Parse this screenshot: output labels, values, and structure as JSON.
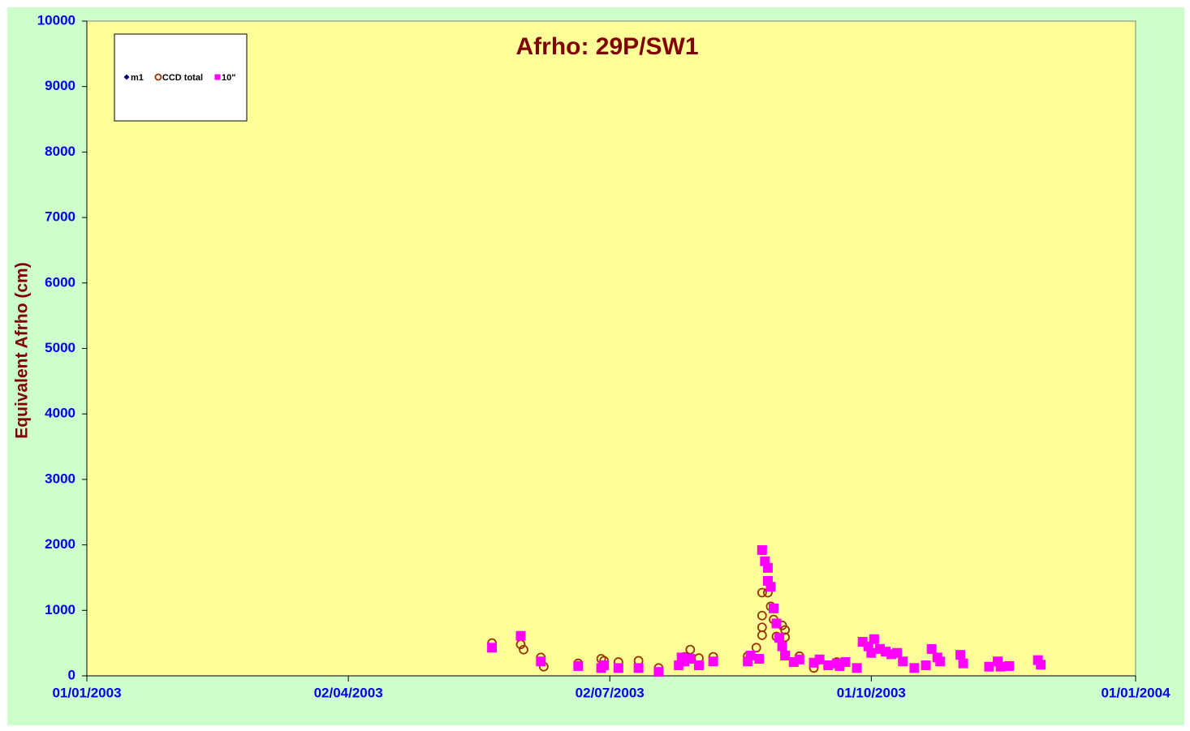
{
  "chart_data": {
    "type": "scatter",
    "title": "Afrho: 29P/SW1",
    "y_label": "Equivalent Afrho (cm)",
    "xlim": [
      "2003-01-01",
      "2004-01-01"
    ],
    "xticks": [
      {
        "value": "2003-01-01",
        "label": "01/01/2003"
      },
      {
        "value": "2003-04-02",
        "label": "02/04/2003"
      },
      {
        "value": "2003-07-02",
        "label": "02/07/2003"
      },
      {
        "value": "2003-10-01",
        "label": "01/10/2003"
      },
      {
        "value": "2004-01-01",
        "label": "01/01/2004"
      }
    ],
    "ylim": [
      0,
      10000
    ],
    "yticks": [
      0,
      1000,
      2000,
      3000,
      4000,
      5000,
      6000,
      7000,
      8000,
      9000,
      10000
    ],
    "legend": "upper left",
    "series": [
      {
        "name": "m1",
        "color": "#000080",
        "marker": "diamond",
        "x": [],
        "values": []
      },
      {
        "name": "CCD total",
        "color": "#993300",
        "marker": "open-circle",
        "x": [
          "2003-05-22",
          "2003-06-01",
          "2003-06-02",
          "2003-06-08",
          "2003-06-09",
          "2003-06-21",
          "2003-06-29",
          "2003-06-30",
          "2003-07-05",
          "2003-07-12",
          "2003-07-19",
          "2003-07-28",
          "2003-07-30",
          "2003-08-02",
          "2003-08-07",
          "2003-08-19",
          "2003-08-22",
          "2003-08-24",
          "2003-08-24",
          "2003-08-24",
          "2003-08-24",
          "2003-08-26",
          "2003-08-27",
          "2003-08-28",
          "2003-08-29",
          "2003-08-31",
          "2003-09-01",
          "2003-09-01",
          "2003-09-06",
          "2003-09-11",
          "2003-09-19"
        ],
        "values": [
          500,
          480,
          400,
          280,
          140,
          190,
          260,
          230,
          210,
          230,
          120,
          290,
          400,
          270,
          290,
          300,
          430,
          1270,
          920,
          740,
          620,
          1270,
          1060,
          860,
          600,
          770,
          700,
          590,
          300,
          120,
          210
        ]
      },
      {
        "name": "10\"",
        "color": "#ff00ff",
        "marker": "square",
        "x": [
          "2003-05-22",
          "2003-06-01",
          "2003-06-08",
          "2003-06-21",
          "2003-06-29",
          "2003-06-30",
          "2003-07-05",
          "2003-07-12",
          "2003-07-19",
          "2003-07-26",
          "2003-07-27",
          "2003-07-28",
          "2003-07-30",
          "2003-08-02",
          "2003-08-07",
          "2003-08-19",
          "2003-08-20",
          "2003-08-23",
          "2003-08-24",
          "2003-08-25",
          "2003-08-26",
          "2003-08-26",
          "2003-08-27",
          "2003-08-28",
          "2003-08-29",
          "2003-08-30",
          "2003-08-31",
          "2003-09-01",
          "2003-09-04",
          "2003-09-06",
          "2003-09-11",
          "2003-09-13",
          "2003-09-16",
          "2003-09-19",
          "2003-09-20",
          "2003-09-22",
          "2003-09-26",
          "2003-09-28",
          "2003-09-30",
          "2003-10-01",
          "2003-10-02",
          "2003-10-04",
          "2003-10-06",
          "2003-10-08",
          "2003-10-10",
          "2003-10-12",
          "2003-10-16",
          "2003-10-20",
          "2003-10-22",
          "2003-10-24",
          "2003-10-25",
          "2003-11-01",
          "2003-11-02",
          "2003-11-11",
          "2003-11-14",
          "2003-11-15",
          "2003-11-18",
          "2003-11-28",
          "2003-11-29"
        ],
        "values": [
          430,
          610,
          220,
          150,
          120,
          160,
          120,
          120,
          60,
          160,
          280,
          220,
          260,
          160,
          220,
          220,
          310,
          260,
          1920,
          1750,
          1650,
          1450,
          1360,
          1030,
          800,
          580,
          450,
          310,
          210,
          250,
          200,
          250,
          160,
          190,
          150,
          210,
          120,
          520,
          450,
          350,
          560,
          410,
          370,
          330,
          350,
          220,
          120,
          160,
          410,
          280,
          220,
          320,
          190,
          140,
          220,
          140,
          150,
          240,
          170
        ]
      }
    ]
  }
}
